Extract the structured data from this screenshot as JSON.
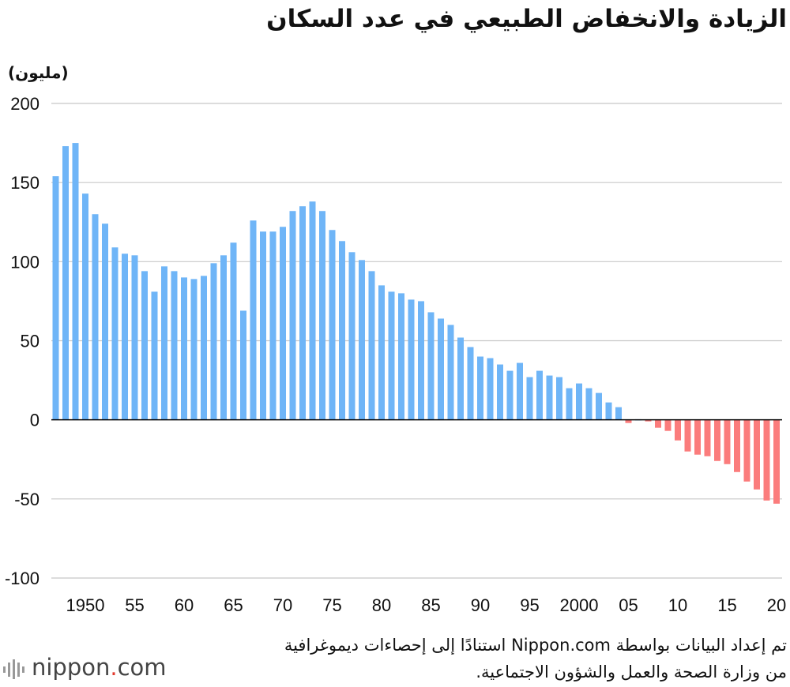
{
  "title": "الزيادة والانخفاض الطبيعي في عدد السكان",
  "unit_label": "(مليون)",
  "source_lines": [
    "تم إعداد البيانات بواسطة Nippon.com استنادًا إلى إحصاءات ديموغرافية",
    "من وزارة الصحة والعمل والشؤون الاجتماعية."
  ],
  "logo": {
    "name": "nippon",
    "dot": ".",
    "tld": "com"
  },
  "colors": {
    "positive": "#6fb5f7",
    "negative": "#fb7c7c",
    "grid": "#c8c8c8",
    "zero": "#000000"
  },
  "chart_data": {
    "type": "bar",
    "ylim": [
      -100,
      200
    ],
    "yticks": [
      200,
      150,
      100,
      50,
      0,
      -50,
      -100
    ],
    "ytick_labels": [
      "200",
      "150",
      "100",
      "50",
      "0",
      "-50",
      "-100"
    ],
    "grid": true,
    "x": [
      1947,
      1948,
      1949,
      1950,
      1951,
      1952,
      1953,
      1954,
      1955,
      1956,
      1957,
      1958,
      1959,
      1960,
      1961,
      1962,
      1963,
      1964,
      1965,
      1966,
      1967,
      1968,
      1969,
      1970,
      1971,
      1972,
      1973,
      1974,
      1975,
      1976,
      1977,
      1978,
      1979,
      1980,
      1981,
      1982,
      1983,
      1984,
      1985,
      1986,
      1987,
      1988,
      1989,
      1990,
      1991,
      1992,
      1993,
      1994,
      1995,
      1996,
      1997,
      1998,
      1999,
      2000,
      2001,
      2002,
      2003,
      2004,
      2005,
      2006,
      2007,
      2008,
      2009,
      2010,
      2011,
      2012,
      2013,
      2014,
      2015,
      2016,
      2017,
      2018,
      2019,
      2020
    ],
    "values": [
      154,
      173,
      175,
      143,
      130,
      124,
      109,
      105,
      104,
      94,
      81,
      97,
      94,
      90,
      89,
      91,
      99,
      104,
      112,
      69,
      126,
      119,
      119,
      122,
      132,
      135,
      138,
      132,
      120,
      113,
      106,
      101,
      94,
      85,
      81,
      80,
      76,
      75,
      68,
      64,
      60,
      52,
      46,
      40,
      39,
      35,
      31,
      36,
      27,
      31,
      28,
      27,
      20,
      23,
      20,
      17,
      11,
      8,
      -2,
      0,
      -1,
      -5,
      -7,
      -13,
      -20,
      -22,
      -23,
      -26,
      -28,
      -33,
      -39,
      -44,
      -51,
      -53
    ],
    "xtick_years": [
      1950,
      1955,
      1960,
      1965,
      1970,
      1975,
      1980,
      1985,
      1990,
      1995,
      2000,
      2005,
      2010,
      2015,
      2020
    ],
    "xtick_labels": [
      "1950",
      "55",
      "60",
      "65",
      "70",
      "75",
      "80",
      "85",
      "90",
      "95",
      "2000",
      "05",
      "10",
      "15",
      "20"
    ]
  }
}
